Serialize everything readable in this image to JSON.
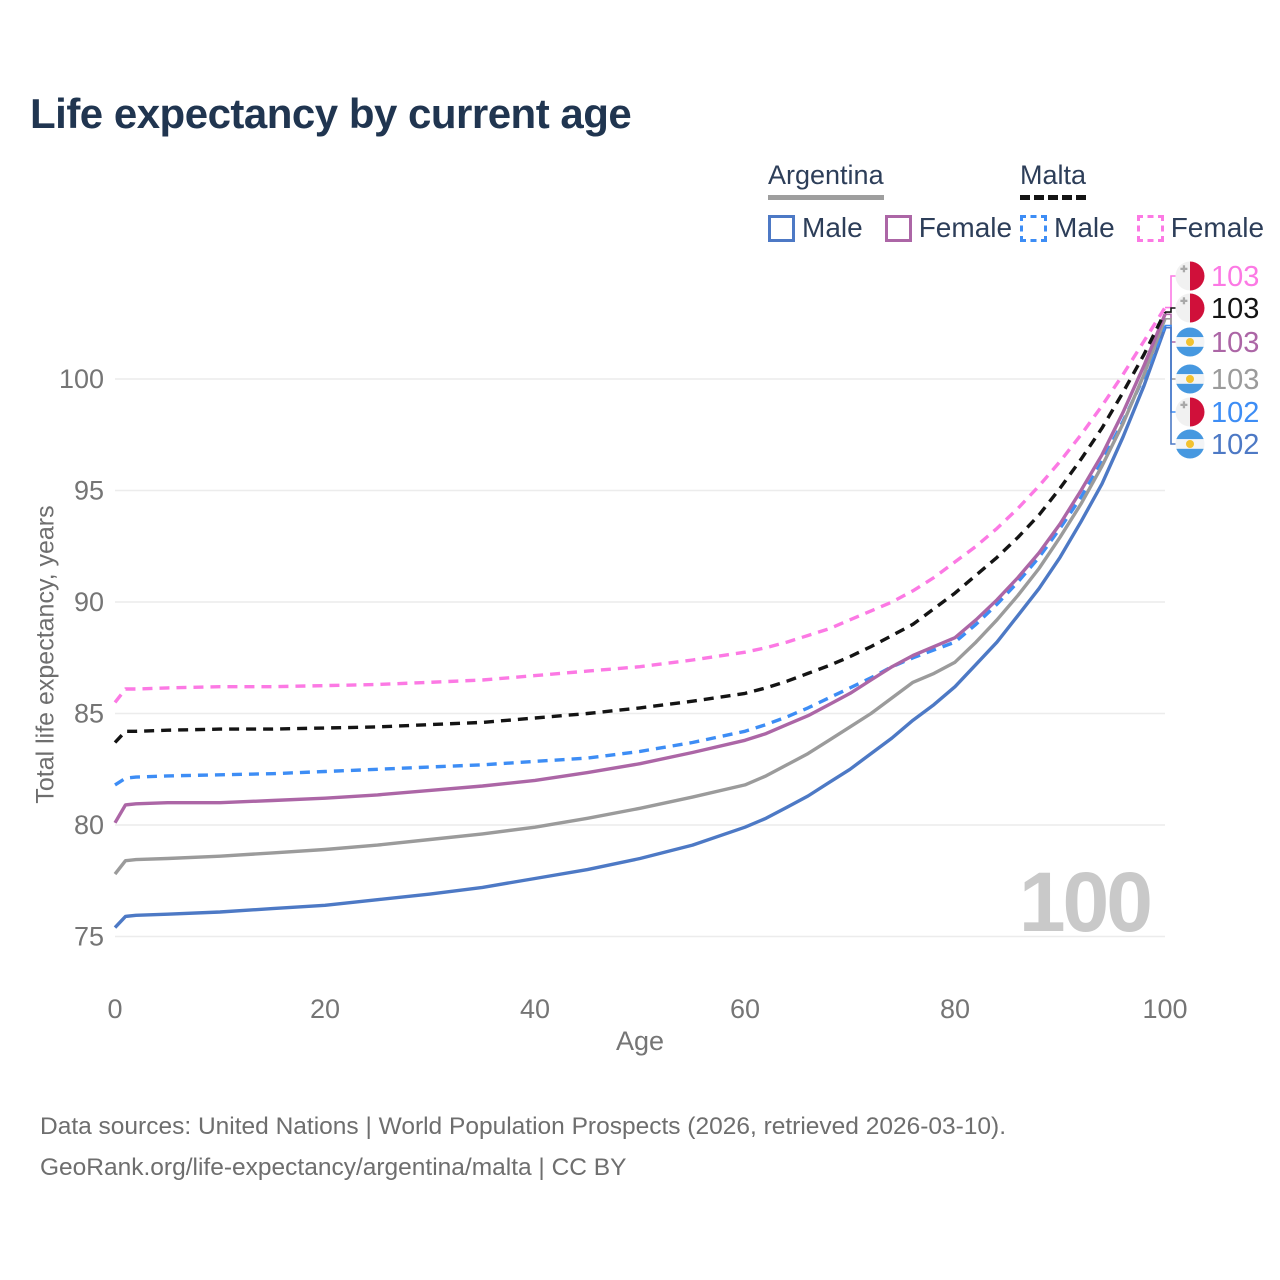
{
  "title": "Life expectancy by current age",
  "legend": {
    "groups": [
      {
        "country": "Argentina",
        "underline_style": "solid",
        "underline_color": "#9e9e9e",
        "items": [
          {
            "label": "Male",
            "color": "#4d79c5",
            "style": "solid"
          },
          {
            "label": "Female",
            "color": "#ac66a6",
            "style": "solid"
          }
        ]
      },
      {
        "country": "Malta",
        "underline_style": "dashed",
        "underline_color": "#141414",
        "items": [
          {
            "label": "Male",
            "color": "#3d8df5",
            "style": "dashed"
          },
          {
            "label": "Female",
            "color": "#fc79e4",
            "style": "dashed"
          }
        ]
      }
    ]
  },
  "chart_data": {
    "type": "line",
    "title": "Life expectancy by current age",
    "xlabel": "Age",
    "ylabel": "Total life expectancy, years",
    "xticks": [
      0,
      20,
      40,
      60,
      80,
      100
    ],
    "yticks": [
      75,
      80,
      85,
      90,
      95,
      100
    ],
    "xlim": [
      0,
      100
    ],
    "ylim": [
      74,
      104
    ],
    "grid": true,
    "legend_position": "top-right",
    "age_counter": "100",
    "ages": [
      0,
      1,
      2,
      5,
      10,
      15,
      20,
      25,
      30,
      35,
      40,
      45,
      50,
      55,
      60,
      62,
      64,
      66,
      68,
      70,
      72,
      74,
      76,
      78,
      80,
      82,
      84,
      86,
      88,
      90,
      92,
      94,
      96,
      98,
      100
    ],
    "series": [
      {
        "name": "Malta Female",
        "country": "Malta",
        "sex": "Female",
        "flag": "malta",
        "color": "#fc79e4",
        "dash": true,
        "end_label": "103",
        "values": [
          85.5,
          86.1,
          86.1,
          86.15,
          86.2,
          86.2,
          86.25,
          86.3,
          86.4,
          86.5,
          86.7,
          86.9,
          87.1,
          87.4,
          87.75,
          87.95,
          88.2,
          88.5,
          88.8,
          89.2,
          89.6,
          90.0,
          90.5,
          91.1,
          91.8,
          92.5,
          93.3,
          94.2,
          95.2,
          96.3,
          97.5,
          98.8,
          100.2,
          101.7,
          103.2
        ]
      },
      {
        "name": "Malta Total",
        "country": "Malta",
        "sex": "All",
        "flag": "malta",
        "color": "#141414",
        "dash": true,
        "end_label": "103",
        "values": [
          83.7,
          84.2,
          84.2,
          84.25,
          84.3,
          84.3,
          84.35,
          84.4,
          84.5,
          84.6,
          84.8,
          85.0,
          85.25,
          85.55,
          85.9,
          86.15,
          86.45,
          86.8,
          87.15,
          87.55,
          88.0,
          88.5,
          89.0,
          89.7,
          90.4,
          91.2,
          92.0,
          92.9,
          93.9,
          95.1,
          96.4,
          97.8,
          99.4,
          101.1,
          103.0
        ]
      },
      {
        "name": "Argentina Female",
        "country": "Argentina",
        "sex": "Female",
        "flag": "argentina",
        "color": "#ac66a6",
        "dash": false,
        "end_label": "103",
        "values": [
          80.1,
          80.9,
          80.95,
          81.0,
          81.0,
          81.1,
          81.2,
          81.35,
          81.55,
          81.75,
          82.0,
          82.35,
          82.75,
          83.25,
          83.8,
          84.1,
          84.5,
          84.9,
          85.4,
          85.9,
          86.5,
          87.1,
          87.6,
          88.0,
          88.4,
          89.2,
          90.1,
          91.1,
          92.2,
          93.5,
          95.0,
          96.6,
          98.5,
          100.6,
          102.9
        ]
      },
      {
        "name": "Argentina Total",
        "country": "Argentina",
        "sex": "All",
        "flag": "argentina",
        "color": "#9b9b9b",
        "dash": false,
        "end_label": "103",
        "values": [
          77.8,
          78.4,
          78.45,
          78.5,
          78.6,
          78.75,
          78.9,
          79.1,
          79.35,
          79.6,
          79.9,
          80.3,
          80.75,
          81.25,
          81.8,
          82.2,
          82.7,
          83.2,
          83.8,
          84.4,
          85.0,
          85.7,
          86.4,
          86.8,
          87.3,
          88.2,
          89.2,
          90.3,
          91.5,
          92.9,
          94.4,
          96.1,
          98.0,
          100.2,
          102.7
        ]
      },
      {
        "name": "Malta Male",
        "country": "Malta",
        "sex": "Male",
        "flag": "malta",
        "color": "#3d8df5",
        "dash": true,
        "end_label": "102",
        "values": [
          81.8,
          82.1,
          82.15,
          82.2,
          82.25,
          82.3,
          82.4,
          82.5,
          82.6,
          82.7,
          82.85,
          83.0,
          83.3,
          83.7,
          84.2,
          84.5,
          84.85,
          85.25,
          85.7,
          86.15,
          86.6,
          87.1,
          87.5,
          87.85,
          88.2,
          89.0,
          89.9,
          90.9,
          92.0,
          93.3,
          94.7,
          96.3,
          98.1,
          100.1,
          102.4
        ]
      },
      {
        "name": "Argentina Male",
        "country": "Argentina",
        "sex": "Male",
        "flag": "argentina",
        "color": "#4d79c5",
        "dash": false,
        "end_label": "102",
        "values": [
          75.4,
          75.9,
          75.95,
          76.0,
          76.1,
          76.25,
          76.4,
          76.65,
          76.9,
          77.2,
          77.6,
          78.0,
          78.5,
          79.1,
          79.9,
          80.3,
          80.8,
          81.3,
          81.9,
          82.5,
          83.2,
          83.9,
          84.7,
          85.4,
          86.2,
          87.2,
          88.2,
          89.4,
          90.6,
          92.0,
          93.6,
          95.3,
          97.4,
          99.7,
          102.3
        ]
      }
    ],
    "flag_colors": {
      "malta_white": "#f1f1f1",
      "malta_red": "#d0103a",
      "malta_cross": "#a9a9a9",
      "argentina_blue": "#4698e0",
      "argentina_white": "#f2f4f6",
      "argentina_sun": "#f2c230"
    },
    "grid_color": "#ececec",
    "tick_color": "#757575"
  },
  "footer": {
    "line1": "Data sources: United Nations | World Population Prospects (2026, retrieved 2026-03-10).",
    "line2": "GeoRank.org/life-expectancy/argentina/malta | CC BY"
  }
}
